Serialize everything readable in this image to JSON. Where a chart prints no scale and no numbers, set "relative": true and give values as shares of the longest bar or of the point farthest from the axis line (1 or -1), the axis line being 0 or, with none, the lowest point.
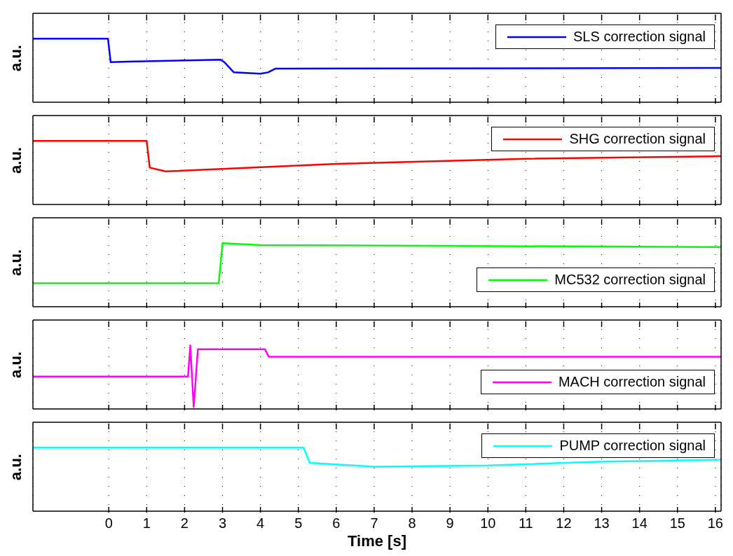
{
  "chart_data": [
    {
      "type": "line",
      "ylabel": "a.u.",
      "relative": true,
      "grid": "x",
      "legend": "top right",
      "tick_labels": false,
      "xlim": [
        -2,
        16.15
      ],
      "xticks": [
        0,
        1,
        2,
        3,
        4,
        5,
        6,
        7,
        8,
        9,
        10,
        11,
        12,
        13,
        14,
        15,
        16
      ],
      "series": [
        {
          "name": "SLS correction signal",
          "color": "#0000ff",
          "x": [
            -2,
            -0.02,
            0.05,
            0.5,
            2.95,
            3.05,
            3.3,
            4.0,
            4.2,
            4.4,
            16.15
          ],
          "values": [
            1,
            1,
            0.63,
            0.64,
            0.67,
            0.63,
            0.47,
            0.45,
            0.47,
            0.53,
            0.54
          ]
        }
      ]
    },
    {
      "type": "line",
      "ylabel": "a.u.",
      "relative": true,
      "grid": "x",
      "legend": "top right",
      "tick_labels": false,
      "xlim": [
        -2,
        16.15
      ],
      "xticks": [
        0,
        1,
        2,
        3,
        4,
        5,
        6,
        7,
        8,
        9,
        10,
        11,
        12,
        13,
        14,
        15,
        16
      ],
      "series": [
        {
          "name": "SHG correction signal",
          "color": "#ff0000",
          "x": [
            -2,
            1.0,
            1.08,
            1.5,
            6,
            11,
            16.15
          ],
          "values": [
            1,
            1,
            0.58,
            0.52,
            0.64,
            0.72,
            0.76
          ]
        }
      ]
    },
    {
      "type": "line",
      "ylabel": "a.u.",
      "relative": true,
      "grid": "x",
      "legend": "bottom right",
      "tick_labels": false,
      "xlim": [
        -2,
        16.15
      ],
      "xticks": [
        0,
        1,
        2,
        3,
        4,
        5,
        6,
        7,
        8,
        9,
        10,
        11,
        12,
        13,
        14,
        15,
        16
      ],
      "series": [
        {
          "name": "MC532 correction signal",
          "color": "#00ff00",
          "x": [
            -2,
            2.9,
            3.0,
            4,
            16.15
          ],
          "values": [
            0.37,
            0.37,
            1,
            0.97,
            0.94
          ]
        }
      ]
    },
    {
      "type": "line",
      "ylabel": "a.u.",
      "relative": true,
      "grid": "x",
      "legend": "bottom right",
      "tick_labels": false,
      "xlim": [
        -2,
        16.15
      ],
      "xticks": [
        0,
        1,
        2,
        3,
        4,
        5,
        6,
        7,
        8,
        9,
        10,
        11,
        12,
        13,
        14,
        15,
        16
      ],
      "series": [
        {
          "name": "MACH correction signal",
          "color": "#ff00ff",
          "x": [
            -2,
            2.09,
            2.15,
            2.24,
            2.35,
            4.12,
            4.22,
            16.15
          ],
          "values": [
            0.51,
            0.51,
            1,
            0.03,
            0.94,
            0.94,
            0.82,
            0.82
          ]
        }
      ]
    },
    {
      "type": "line",
      "ylabel": "a.u.",
      "xlabel": "Time [s]",
      "relative": true,
      "grid": "x",
      "legend": "top right",
      "tick_labels": "x",
      "xlim": [
        -2,
        16.15
      ],
      "xticks": [
        0,
        1,
        2,
        3,
        4,
        5,
        6,
        7,
        8,
        9,
        10,
        11,
        12,
        13,
        14,
        15,
        16
      ],
      "series": [
        {
          "name": "PUMP correction signal",
          "color": "#00ffff",
          "x": [
            -2,
            5.14,
            5.3,
            7,
            10,
            13,
            16.15
          ],
          "values": [
            1,
            1,
            0.76,
            0.7,
            0.72,
            0.78,
            0.81
          ]
        }
      ]
    }
  ]
}
